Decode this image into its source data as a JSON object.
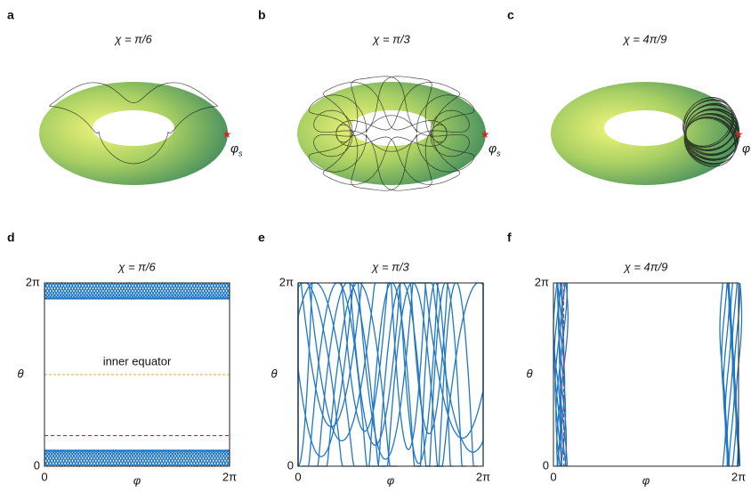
{
  "panels": [
    {
      "label": "a",
      "title": "χ = π/6",
      "point_label": "φ",
      "point_sub": "s"
    },
    {
      "label": "b",
      "title": "χ = π/3",
      "point_label": "φ",
      "point_sub": "s"
    },
    {
      "label": "c",
      "title": "χ = 4π/9",
      "point_label": "φ"
    }
  ],
  "plots": [
    {
      "label": "d",
      "title": "χ = π/6",
      "y_label": "θ",
      "x_label": "φ",
      "x_ticks": [
        "0",
        "2π"
      ],
      "y_ticks": [
        "0",
        "2π"
      ],
      "annotation": "inner equator"
    },
    {
      "label": "e",
      "title": "χ = π/3",
      "y_label": "θ",
      "x_label": "φ",
      "x_ticks": [
        "0",
        "2π"
      ],
      "y_ticks": [
        "0",
        "2π"
      ]
    },
    {
      "label": "f",
      "title": "χ = 4π/9",
      "y_label": "θ",
      "x_label": "φ",
      "x_ticks": [
        "0",
        "2π"
      ],
      "y_ticks": [
        "0",
        "2π"
      ]
    }
  ]
}
